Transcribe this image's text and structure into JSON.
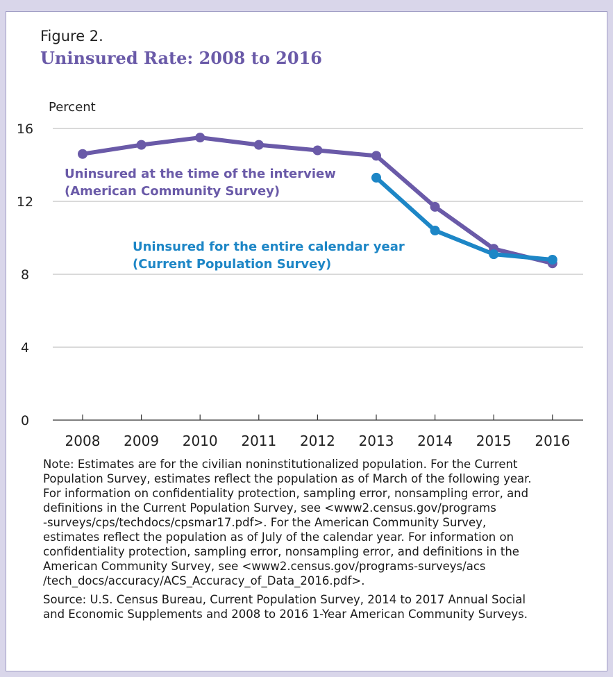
{
  "figure_label": "Figure 2.",
  "chart_data": {
    "type": "line",
    "title": "Uninsured Rate: 2008 to 2016",
    "ylabel": "Percent",
    "xlabel": "",
    "ylim": [
      0,
      16
    ],
    "yticks": [
      0,
      4,
      8,
      12,
      16
    ],
    "grid": true,
    "x": [
      2008,
      2009,
      2010,
      2011,
      2012,
      2013,
      2014,
      2015,
      2016
    ],
    "series": [
      {
        "name": "Uninsured at the time of the interview",
        "source_label": "(American Community Survey)",
        "color": "#6a5aa8",
        "x": [
          2008,
          2009,
          2010,
          2011,
          2012,
          2013,
          2014,
          2015,
          2016
        ],
        "values": [
          14.6,
          15.1,
          15.5,
          15.1,
          14.8,
          14.5,
          11.7,
          9.4,
          8.6
        ]
      },
      {
        "name": "Uninsured for the entire calendar year",
        "source_label": "(Current Population Survey)",
        "color": "#1d86c6",
        "x": [
          2013,
          2014,
          2015,
          2016
        ],
        "values": [
          13.3,
          10.4,
          9.1,
          8.8
        ]
      }
    ]
  },
  "note": "Note: Estimates are for the civilian noninstitutionalized population. For the Current\nPopulation Survey, estimates reflect the population as of March of the following year.\nFor information on confidentiality protection, sampling error, nonsampling error, and\ndefinitions in the Current Population Survey, see <www2.census.gov/programs\n-surveys/cps/techdocs/cpsmar17.pdf>. For the American Community Survey,\nestimates reflect the population as of July of the calendar year. For information on\nconfidentiality protection, sampling error, nonsampling error, and definitions in the\nAmerican Community Survey, see <www2.census.gov/programs-surveys/acs\n/tech_docs/accuracy/ACS_Accuracy_of_Data_2016.pdf>.",
  "source": "Source: U.S. Census Bureau, Current Population Survey, 2014 to 2017 Annual Social\nand Economic Supplements and 2008 to 2016 1-Year American Community Surveys."
}
